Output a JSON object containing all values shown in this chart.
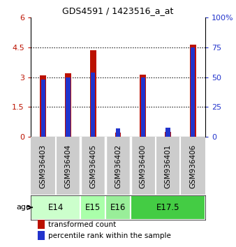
{
  "title": "GDS4591 / 1423516_a_at",
  "samples": [
    "GSM936403",
    "GSM936404",
    "GSM936405",
    "GSM936402",
    "GSM936400",
    "GSM936401",
    "GSM936406"
  ],
  "transformed_count": [
    3.08,
    3.18,
    4.35,
    0.22,
    3.12,
    0.24,
    4.62
  ],
  "percentile_rank": [
    48,
    50,
    54,
    7,
    50,
    8,
    75
  ],
  "age_groups": [
    {
      "label": "E14",
      "span": [
        0,
        2
      ],
      "color": "#ccffcc"
    },
    {
      "label": "E15",
      "span": [
        2,
        3
      ],
      "color": "#aaffaa"
    },
    {
      "label": "E16",
      "span": [
        3,
        4
      ],
      "color": "#99ee99"
    },
    {
      "label": "E17.5",
      "span": [
        4,
        7
      ],
      "color": "#44cc44"
    }
  ],
  "sample_bg_color": "#cccccc",
  "bar_color": "#bb1100",
  "percentile_color": "#2233cc",
  "ylim_left": [
    0,
    6
  ],
  "ylim_right": [
    0,
    100
  ],
  "yticks_left": [
    0,
    1.5,
    3.0,
    4.5,
    6.0
  ],
  "ytick_labels_left": [
    "0",
    "1.5",
    "3",
    "4.5",
    "6"
  ],
  "yticks_right": [
    0,
    25,
    50,
    75,
    100
  ],
  "ytick_labels_right": [
    "0",
    "25",
    "50",
    "75",
    "100%"
  ],
  "grid_values": [
    1.5,
    3.0,
    4.5
  ],
  "legend_tc": "transformed count",
  "legend_pr": "percentile rank within the sample",
  "age_label": "age",
  "bg_color": "#ffffff"
}
